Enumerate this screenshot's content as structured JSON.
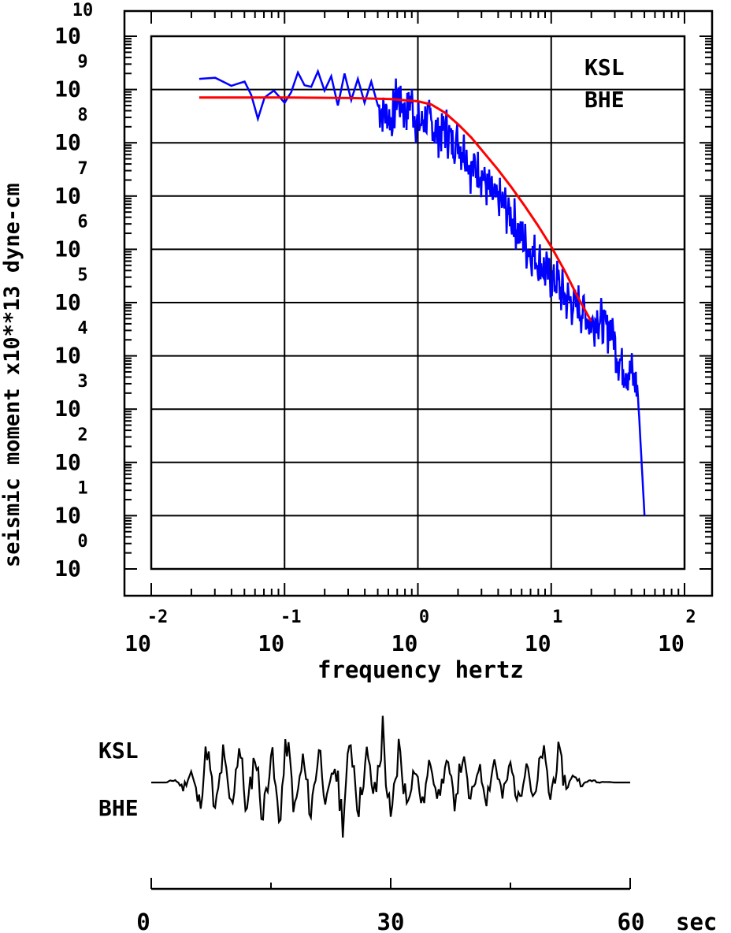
{
  "chart_data": [
    {
      "type": "line",
      "scale": "log-log",
      "xlabel": "frequency  hertz",
      "ylabel": "seismic moment x10**13 dyne-cm",
      "xlim_exponent": [
        -2,
        2
      ],
      "ylim_exponent": [
        0,
        10
      ],
      "x_tick_exponents": [
        "-2",
        "-1",
        "0",
        "1",
        "2"
      ],
      "x_tick_base": "10",
      "y_tick_exponents": [
        "10",
        "9",
        "8",
        "7",
        "6",
        "5",
        "4",
        "3",
        "2",
        "1",
        "0"
      ],
      "y_tick_base": "10",
      "grid": true,
      "station": "KSL",
      "component": "BHE",
      "series": [
        {
          "role": "observed spectrum",
          "color": "#0000ff",
          "log_x": [
            -1.64,
            -1.52,
            -1.4,
            -1.3,
            -1.25,
            -1.2,
            -1.15,
            -1.08,
            -1.0,
            -0.95,
            -0.9,
            -0.85,
            -0.8,
            -0.75,
            -0.7,
            -0.65,
            -0.6,
            -0.55,
            -0.5,
            -0.45,
            -0.4,
            -0.35,
            -0.3,
            -0.25,
            -0.2,
            -0.15,
            -0.1,
            -0.05,
            0.0,
            0.05,
            0.1,
            0.15,
            0.2,
            0.25,
            0.3,
            0.35,
            0.4,
            0.45,
            0.5,
            0.55,
            0.6,
            0.65,
            0.7,
            0.75,
            0.8,
            0.85,
            0.9,
            0.95,
            1.0,
            1.05,
            1.1,
            1.15,
            1.2,
            1.25,
            1.3,
            1.35,
            1.4,
            1.45,
            1.5,
            1.55,
            1.6,
            1.65,
            1.7
          ],
          "log_y": [
            9.2,
            9.22,
            9.07,
            9.15,
            8.9,
            8.45,
            8.85,
            8.98,
            8.75,
            8.95,
            9.32,
            9.08,
            9.05,
            9.34,
            8.98,
            9.25,
            8.7,
            9.3,
            8.8,
            9.2,
            8.75,
            9.15,
            8.7,
            8.6,
            8.4,
            8.9,
            8.6,
            8.8,
            8.3,
            8.45,
            8.35,
            8.2,
            8.3,
            8.05,
            8.0,
            7.85,
            7.5,
            7.6,
            7.3,
            7.0,
            6.9,
            6.8,
            6.6,
            6.4,
            6.1,
            5.95,
            5.8,
            5.6,
            5.5,
            5.35,
            5.1,
            5.0,
            4.95,
            4.8,
            4.6,
            4.75,
            4.5,
            4.55,
            4.0,
            3.8,
            3.7,
            3.3,
            1.0
          ]
        },
        {
          "role": "model fit",
          "color": "#ff0000",
          "log_x": [
            -1.64,
            -1.0,
            -0.5,
            -0.2,
            0.0,
            0.1,
            0.2,
            0.3,
            0.4,
            0.5,
            0.6,
            0.7,
            0.8,
            0.9,
            1.0,
            1.1,
            1.2,
            1.3
          ],
          "log_y": [
            8.85,
            8.85,
            8.84,
            8.82,
            8.78,
            8.72,
            8.57,
            8.35,
            8.1,
            7.8,
            7.5,
            7.17,
            6.82,
            6.45,
            6.05,
            5.6,
            5.1,
            4.65
          ]
        }
      ]
    },
    {
      "type": "line",
      "role": "seismogram trace",
      "xlabel": "sec",
      "x_ticks": [
        "0",
        "30",
        "60"
      ],
      "xlim": [
        0,
        60
      ],
      "station": "KSL",
      "component": "BHE",
      "color": "#000000",
      "x": [
        0,
        1,
        2,
        3,
        4,
        5,
        6,
        7,
        8,
        9,
        10,
        11,
        12,
        13,
        14,
        15,
        16,
        17,
        18,
        19,
        20,
        21,
        22,
        23,
        24,
        25,
        26,
        27,
        28,
        29,
        30,
        31,
        32,
        33,
        34,
        35,
        36,
        37,
        38,
        39,
        40,
        41,
        42,
        43,
        44,
        45,
        46,
        47,
        48,
        49,
        50,
        51,
        52,
        53,
        54,
        55,
        56,
        57,
        58,
        59,
        60
      ],
      "y": [
        0.0,
        0.0,
        0.0,
        0.05,
        -0.1,
        0.2,
        -0.45,
        0.7,
        -0.65,
        0.55,
        -0.5,
        0.75,
        -0.6,
        0.6,
        -0.7,
        0.65,
        -0.75,
        0.8,
        -0.55,
        0.45,
        -0.6,
        0.7,
        -0.4,
        0.35,
        -0.7,
        0.85,
        -0.5,
        0.55,
        -0.35,
        1.0,
        -0.95,
        0.7,
        -0.4,
        0.3,
        -0.45,
        0.45,
        -0.3,
        0.4,
        -0.35,
        0.5,
        -0.4,
        0.35,
        -0.3,
        0.45,
        -0.3,
        0.35,
        -0.4,
        0.5,
        -0.45,
        0.65,
        -0.3,
        0.55,
        -0.1,
        0.15,
        -0.05,
        0.05,
        0.0,
        0.02,
        0.0,
        0.0,
        0.0
      ]
    }
  ]
}
